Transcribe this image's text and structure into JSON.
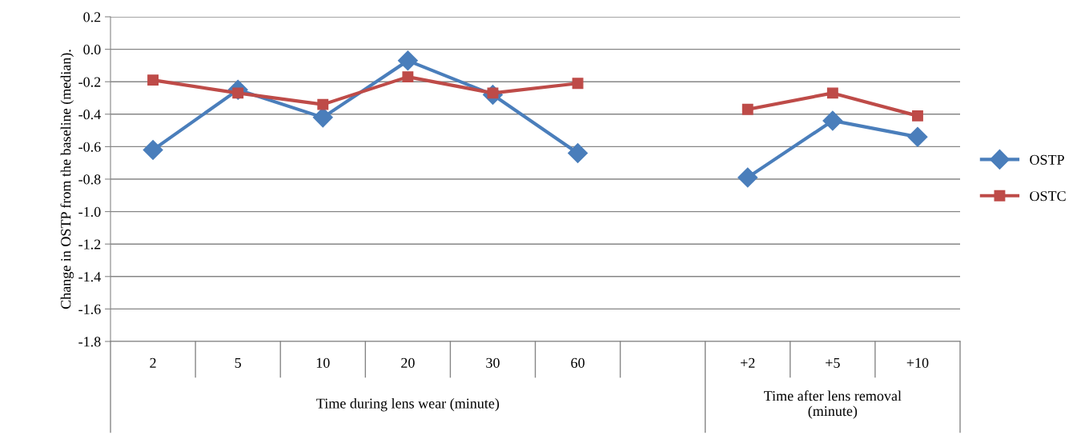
{
  "chart_data": {
    "type": "line",
    "ylabel": "Change in OSTP from the baseline (median).",
    "categories": [
      "2",
      "5",
      "10",
      "20",
      "30",
      "60",
      null,
      "+2",
      "+5",
      "+10"
    ],
    "series": [
      {
        "name": "OSTP",
        "color": "#4a7ebb",
        "marker": "diamond",
        "values": [
          -0.62,
          -0.25,
          -0.42,
          -0.07,
          -0.28,
          -0.64,
          null,
          -0.79,
          -0.44,
          -0.54
        ]
      },
      {
        "name": "OSTC",
        "color": "#be4b48",
        "marker": "square",
        "values": [
          -0.19,
          -0.27,
          -0.34,
          -0.17,
          -0.27,
          -0.21,
          null,
          -0.37,
          -0.27,
          -0.41
        ]
      }
    ],
    "ylim": [
      -1.8,
      0.2
    ],
    "yticks": [
      {
        "value": -1.8,
        "label": "-1.8"
      },
      {
        "value": -1.6,
        "label": "-1.6"
      },
      {
        "value": -1.4,
        "label": "-1.4"
      },
      {
        "value": -1.2,
        "label": "-1.2"
      },
      {
        "value": -1.0,
        "label": "-1.0"
      },
      {
        "value": -0.8,
        "label": "-0.8"
      },
      {
        "value": -0.6,
        "label": "-0.6"
      },
      {
        "value": -0.4,
        "label": "-0.4"
      },
      {
        "value": -0.2,
        "label": "-0.2"
      },
      {
        "value": 0.0,
        "label": "0.0"
      },
      {
        "value": 0.2,
        "label": "0.2"
      }
    ],
    "grid": "y",
    "legend": "right",
    "line_style": "solid",
    "annotations": [
      "Time during lens wear (minute)",
      "Time after lens removal\n(minute)"
    ]
  }
}
